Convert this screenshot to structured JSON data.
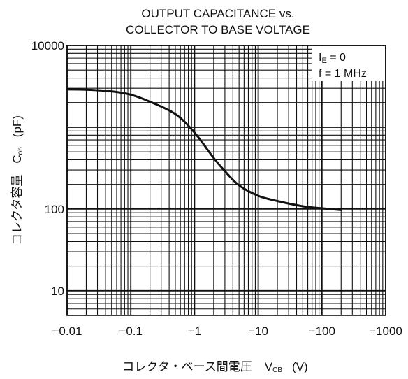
{
  "chart_data": {
    "type": "line",
    "title_line1": "OUTPUT CAPACITANCE vs.",
    "title_line2": "COLLECTOR TO BASE VOLTAGE",
    "xlabel_text": "コレクタ・ベース間電圧",
    "xlabel_symbol": "V",
    "xlabel_symbol_sub": "CB",
    "xlabel_unit": "(V)",
    "ylabel_text": "コレクタ容量",
    "ylabel_symbol": "C",
    "ylabel_symbol_sub": "ob",
    "ylabel_unit": "(pF)",
    "x_scale": "log",
    "y_scale": "log",
    "x_direction": "negative voltage increasing to the right in magnitude",
    "xlim": [
      -0.01,
      -1000
    ],
    "ylim": [
      5,
      10000
    ],
    "x_ticks": [
      {
        "value": -0.01,
        "label": "−0.01"
      },
      {
        "value": -0.1,
        "label": "−0.1"
      },
      {
        "value": -1,
        "label": "−1"
      },
      {
        "value": -10,
        "label": "−10"
      },
      {
        "value": -100,
        "label": "−100"
      },
      {
        "value": -1000,
        "label": "−1000"
      }
    ],
    "y_ticks": [
      {
        "value": 10,
        "label": "10"
      },
      {
        "value": 100,
        "label": "100"
      },
      {
        "value": 10000,
        "label": "10000"
      }
    ],
    "grid": true,
    "annotations": {
      "line1_main": "I",
      "line1_sub": "E",
      "line1_rest": " = 0",
      "line2": "f = 1 MHz",
      "position": "top-right"
    },
    "series": [
      {
        "x": [
          -0.01,
          -0.02,
          -0.05,
          -0.1,
          -0.2,
          -0.5,
          -1,
          -2,
          -3,
          -5,
          -10,
          -20,
          -50,
          -100,
          -200
        ],
        "y": [
          2900,
          2880,
          2750,
          2500,
          2050,
          1450,
          860,
          420,
          290,
          195,
          145,
          125,
          108,
          102,
          97
        ]
      }
    ]
  }
}
